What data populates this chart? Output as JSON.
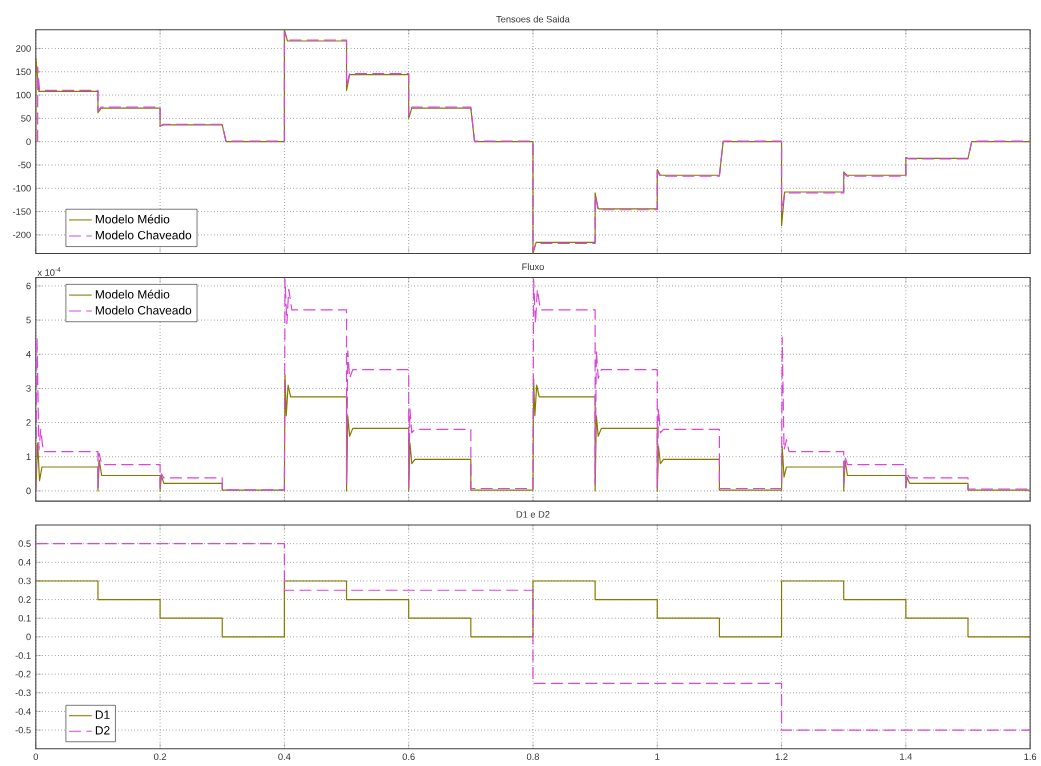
{
  "chart_data": [
    {
      "type": "line",
      "title": "Tensoes de Saida",
      "xlim": [
        0,
        1.6
      ],
      "ylim": [
        -240,
        240
      ],
      "xticks": [
        0,
        0.2,
        0.4,
        0.6,
        0.8,
        1,
        1.2,
        1.4,
        1.6
      ],
      "yticks": [
        -200,
        -150,
        -100,
        -50,
        0,
        50,
        100,
        150,
        200
      ],
      "tick_labels": "y",
      "grid": true,
      "legend": "bottom left",
      "series": [
        {
          "name": "Modelo Médio",
          "color": "#857a00",
          "line_style": "solid",
          "x": [
            0,
            0,
            0.005,
            0.1,
            0.1,
            0.105,
            0.2,
            0.2,
            0.205,
            0.3,
            0.306,
            0.4,
            0.4,
            0.405,
            0.5,
            0.5,
            0.505,
            0.6,
            0.6,
            0.605,
            0.7,
            0.706,
            0.8,
            0.8,
            0.805,
            0.9,
            0.9,
            0.905,
            1.0,
            1.0,
            1.005,
            1.1,
            1.106,
            1.2,
            1.2,
            1.205,
            1.3,
            1.3,
            1.305,
            1.4,
            1.4,
            1.405,
            1.5,
            1.506,
            1.6
          ],
          "values": [
            0,
            180,
            108,
            108,
            62,
            72,
            72,
            33,
            36,
            36,
            0,
            0,
            240,
            216,
            216,
            110,
            144,
            144,
            50,
            72,
            72,
            0,
            0,
            -240,
            -216,
            -216,
            -110,
            -144,
            -144,
            -60,
            -72,
            -72,
            0,
            0,
            -180,
            -108,
            -108,
            -65,
            -72,
            -72,
            -34,
            -36,
            -36,
            0,
            0
          ]
        },
        {
          "name": "Modelo Chaveado",
          "color": "#d946d9",
          "line_style": "dashed",
          "x": [
            0.003,
            0.003,
            0.006,
            0.1,
            0.1,
            0.105,
            0.2,
            0.2,
            0.205,
            0.3,
            0.306,
            0.4,
            0.4,
            0.405,
            0.5,
            0.5,
            0.505,
            0.6,
            0.6,
            0.605,
            0.7,
            0.706,
            0.8,
            0.8,
            0.805,
            0.9,
            0.9,
            0.905,
            1.0,
            1.0,
            1.005,
            1.1,
            1.106,
            1.2,
            1.2,
            1.205,
            1.3,
            1.3,
            1.305,
            1.4,
            1.4,
            1.405,
            1.5,
            1.506,
            1.6
          ],
          "values": [
            0,
            160,
            110,
            110,
            66,
            74,
            74,
            34,
            37,
            37,
            1,
            1,
            235,
            218,
            218,
            120,
            146,
            146,
            56,
            74,
            74,
            1,
            1,
            -235,
            -218,
            -218,
            -116,
            -146,
            -146,
            -64,
            -74,
            -74,
            1,
            1,
            -150,
            -110,
            -110,
            -68,
            -74,
            -74,
            -35,
            -37,
            -37,
            1,
            1
          ]
        }
      ]
    },
    {
      "type": "line",
      "title": "Fluxo",
      "annotations": [
        "x 10$^{-4}$"
      ],
      "xlim": [
        0,
        1.6
      ],
      "ylim": [
        -0.3,
        6.25
      ],
      "xticks": [
        0,
        0.2,
        0.4,
        0.6,
        0.8,
        1,
        1.2,
        1.4,
        1.6
      ],
      "yticks": [
        0,
        1,
        2,
        3,
        4,
        5,
        6
      ],
      "tick_labels": "y",
      "grid": true,
      "legend": "top left",
      "series": [
        {
          "name": "Modelo Médio",
          "color": "#857a00",
          "line_style": "solid",
          "x": [
            0,
            0.003,
            0.006,
            0.01,
            0.1,
            0.1,
            0.102,
            0.106,
            0.2,
            0.2,
            0.202,
            0.206,
            0.3,
            0.3,
            0.4,
            0.401,
            0.403,
            0.406,
            0.41,
            0.5,
            0.5,
            0.502,
            0.505,
            0.51,
            0.6,
            0.6,
            0.602,
            0.605,
            0.61,
            0.7,
            0.7,
            0.8,
            0.801,
            0.803,
            0.806,
            0.81,
            0.9,
            0.9,
            0.902,
            0.905,
            0.91,
            1.0,
            1.0,
            1.002,
            1.005,
            1.01,
            1.1,
            1.1,
            1.2,
            1.201,
            1.204,
            1.208,
            1.3,
            1.3,
            1.302,
            1.306,
            1.4,
            1.4,
            1.402,
            1.406,
            1.5,
            1.5,
            1.6
          ],
          "values": [
            0,
            1.4,
            0.3,
            0.7,
            0.7,
            0,
            0.9,
            0.45,
            0.45,
            0,
            0.45,
            0.22,
            0.22,
            0.02,
            0.02,
            3.4,
            2.2,
            3.1,
            2.75,
            2.75,
            0,
            2.2,
            1.6,
            1.83,
            1.83,
            0,
            1.4,
            0.8,
            0.92,
            0.92,
            0.02,
            0.02,
            3.3,
            2.2,
            3.1,
            2.75,
            2.75,
            0,
            2.2,
            1.6,
            1.83,
            1.83,
            0,
            1.3,
            0.8,
            0.92,
            0.92,
            0.02,
            0.02,
            1.3,
            0.4,
            0.7,
            0.7,
            0,
            0.9,
            0.45,
            0.45,
            0.1,
            0.4,
            0.22,
            0.22,
            0.02,
            0.02
          ]
        },
        {
          "name": "Modelo Chaveado",
          "color": "#d946d9",
          "line_style": "dashed",
          "x": [
            0,
            0.002,
            0.005,
            0.008,
            0.012,
            0.1,
            0.1,
            0.102,
            0.106,
            0.2,
            0.2,
            0.202,
            0.206,
            0.3,
            0.3,
            0.4,
            0.401,
            0.404,
            0.407,
            0.412,
            0.5,
            0.5,
            0.502,
            0.505,
            0.51,
            0.6,
            0.6,
            0.602,
            0.605,
            0.61,
            0.7,
            0.7,
            0.8,
            0.801,
            0.804,
            0.807,
            0.812,
            0.9,
            0.9,
            0.902,
            0.905,
            0.91,
            1.0,
            1.0,
            1.002,
            1.005,
            1.01,
            1.1,
            1.1,
            1.2,
            1.201,
            1.204,
            1.208,
            1.212,
            1.3,
            1.3,
            1.302,
            1.306,
            1.4,
            1.4,
            1.402,
            1.406,
            1.5,
            1.5,
            1.6
          ],
          "values": [
            0,
            4.5,
            1.2,
            1.8,
            1.15,
            1.15,
            0.1,
            1.1,
            0.77,
            0.77,
            0.1,
            0.5,
            0.38,
            0.38,
            0.03,
            0.03,
            6.2,
            4.9,
            5.9,
            5.3,
            5.3,
            0.2,
            4.1,
            3.3,
            3.55,
            3.55,
            0.1,
            2.4,
            1.7,
            1.8,
            1.8,
            0.07,
            0.07,
            6.2,
            4.9,
            5.9,
            5.3,
            5.3,
            0.2,
            4.1,
            3.3,
            3.55,
            3.55,
            0.1,
            2.4,
            1.7,
            1.8,
            1.8,
            0.07,
            0.07,
            4.5,
            1.2,
            1.5,
            1.15,
            1.15,
            0.2,
            1.0,
            0.77,
            0.77,
            0.1,
            0.5,
            0.38,
            0.38,
            0.05,
            0.05
          ]
        }
      ]
    },
    {
      "type": "line",
      "title": "D1 e D2",
      "xlim": [
        0,
        1.6
      ],
      "ylim": [
        -0.6,
        0.6
      ],
      "xticks": [
        0,
        0.2,
        0.4,
        0.6,
        0.8,
        1,
        1.2,
        1.4,
        1.6
      ],
      "yticks": [
        -0.5,
        -0.4,
        -0.3,
        -0.2,
        -0.1,
        0,
        0.1,
        0.2,
        0.3,
        0.4,
        0.5
      ],
      "grid": true,
      "legend": "bottom left",
      "series": [
        {
          "name": "D1",
          "color": "#857a00",
          "line_style": "solid",
          "x": [
            0,
            0.1,
            0.1,
            0.2,
            0.2,
            0.3,
            0.3,
            0.4,
            0.4,
            0.5,
            0.5,
            0.6,
            0.6,
            0.7,
            0.7,
            0.8,
            0.8,
            0.9,
            0.9,
            1.0,
            1.0,
            1.1,
            1.1,
            1.2,
            1.2,
            1.3,
            1.3,
            1.4,
            1.4,
            1.5,
            1.5,
            1.6
          ],
          "values": [
            0.3,
            0.3,
            0.2,
            0.2,
            0.1,
            0.1,
            0,
            0,
            0.3,
            0.3,
            0.2,
            0.2,
            0.1,
            0.1,
            0,
            0,
            0.3,
            0.3,
            0.2,
            0.2,
            0.1,
            0.1,
            0,
            0,
            0.3,
            0.3,
            0.2,
            0.2,
            0.1,
            0.1,
            0,
            0
          ]
        },
        {
          "name": "D2",
          "color": "#d946d9",
          "line_style": "dashed",
          "x": [
            0,
            0.4,
            0.4,
            0.8,
            0.8,
            1.2,
            1.2,
            1.6
          ],
          "values": [
            0.5,
            0.5,
            0.25,
            0.25,
            -0.25,
            -0.25,
            -0.5,
            -0.5
          ]
        }
      ]
    }
  ]
}
